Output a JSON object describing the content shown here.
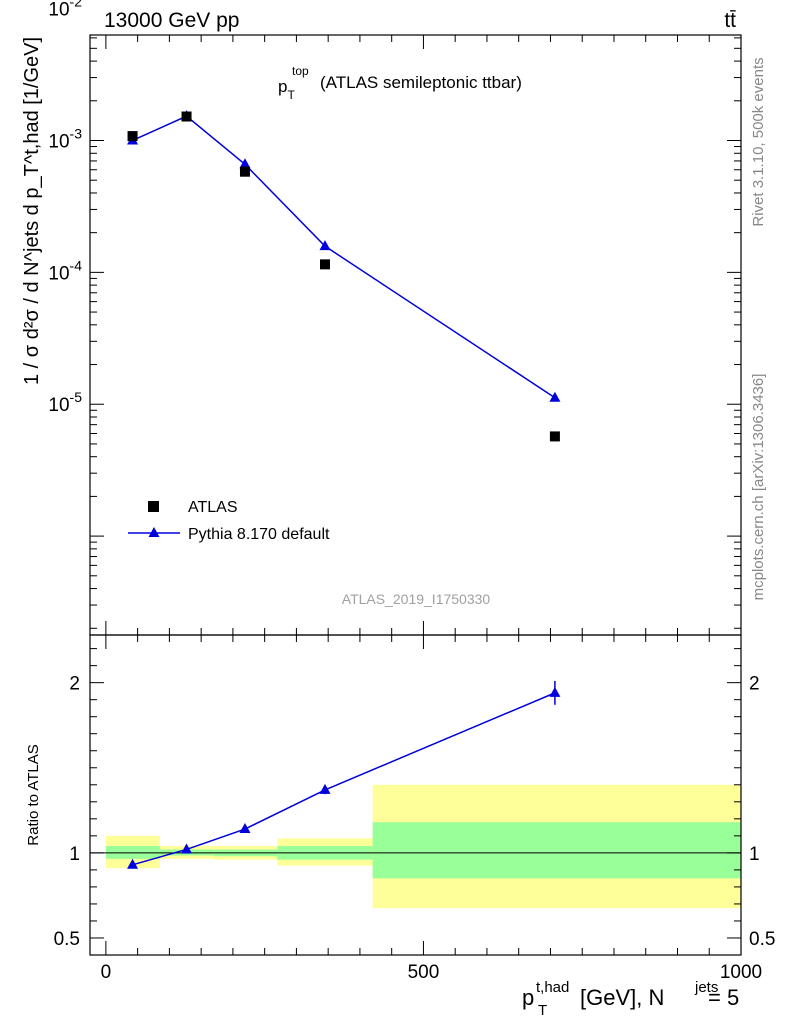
{
  "header": {
    "energy": "13000 GeV pp",
    "process": "tt̄"
  },
  "side_labels": {
    "rivet": "Rivet 3.1.10,  500k events",
    "mcplots": "mcplots.cern.ch [arXiv:1306.3436]"
  },
  "chart_data": {
    "type": "line",
    "title_main": "p",
    "title_sub": "T",
    "title_sup": "top",
    "title_rest": "(ATLAS semileptonic ttbar)",
    "analysis_id": "ATLAS_2019_I1750330",
    "xlabel": {
      "p": "p",
      "sub": "T",
      "sup": "t,had",
      "unit": "[GeV], N",
      "sup2": "jets",
      "rest": "= 5"
    },
    "ylabel_top": "1 / σ d²σ / d N^jets d p_T^t,had [1/GeV]",
    "ylabel_ratio": "Ratio to ATLAS",
    "xlim": [
      -25,
      1000
    ],
    "ylim_top_log10": [
      -6.75,
      -2.2
    ],
    "ylim_ratio": [
      0.4,
      2.28
    ],
    "x_ticks": [
      0,
      500,
      1000
    ],
    "x_tick_labels": [
      "0",
      "500",
      "1000"
    ],
    "y_ticks_top": [
      {
        "base": "10",
        "exp": "-5",
        "log": -5
      },
      {
        "base": "10",
        "exp": "-4",
        "log": -4
      },
      {
        "base": "10",
        "exp": "-3",
        "log": -3
      },
      {
        "base": "10",
        "exp": "-2",
        "log": -2
      }
    ],
    "y_ticks_ratio": [
      0.5,
      1,
      2
    ],
    "y_tick_labels_ratio": [
      "0.5",
      "1",
      "2"
    ],
    "bins": [
      {
        "lo": 0,
        "hi": 85,
        "x": 42
      },
      {
        "lo": 85,
        "hi": 170,
        "x": 127
      },
      {
        "lo": 170,
        "hi": 270,
        "x": 219
      },
      {
        "lo": 270,
        "hi": 420,
        "x": 345
      },
      {
        "lo": 420,
        "hi": 1000,
        "x": 707
      }
    ],
    "series": [
      {
        "name": "ATLAS",
        "marker": "square",
        "color": "#000000",
        "values": [
          0.00108,
          0.00152,
          0.00058,
          0.000115,
          5.7e-06
        ]
      },
      {
        "name": "Pythia 8.170 default",
        "marker": "triangle",
        "color": "#0000dd",
        "values": [
          0.001,
          0.00153,
          0.00066,
          0.000158,
          1.12e-05
        ]
      }
    ],
    "ratio": {
      "values": [
        0.93,
        1.02,
        1.14,
        1.37,
        1.94
      ],
      "errors": [
        0.005,
        0.008,
        0.012,
        0.025,
        0.07
      ],
      "band_stat": [
        [
          0.965,
          1.04
        ],
        [
          0.985,
          1.02
        ],
        [
          0.98,
          1.02
        ],
        [
          0.96,
          1.04
        ],
        [
          0.85,
          1.18
        ]
      ],
      "band_total": [
        [
          0.91,
          1.1
        ],
        [
          0.965,
          1.04
        ],
        [
          0.96,
          1.04
        ],
        [
          0.925,
          1.085
        ],
        [
          0.675,
          1.4
        ]
      ]
    },
    "legend_position": "lower-left"
  }
}
